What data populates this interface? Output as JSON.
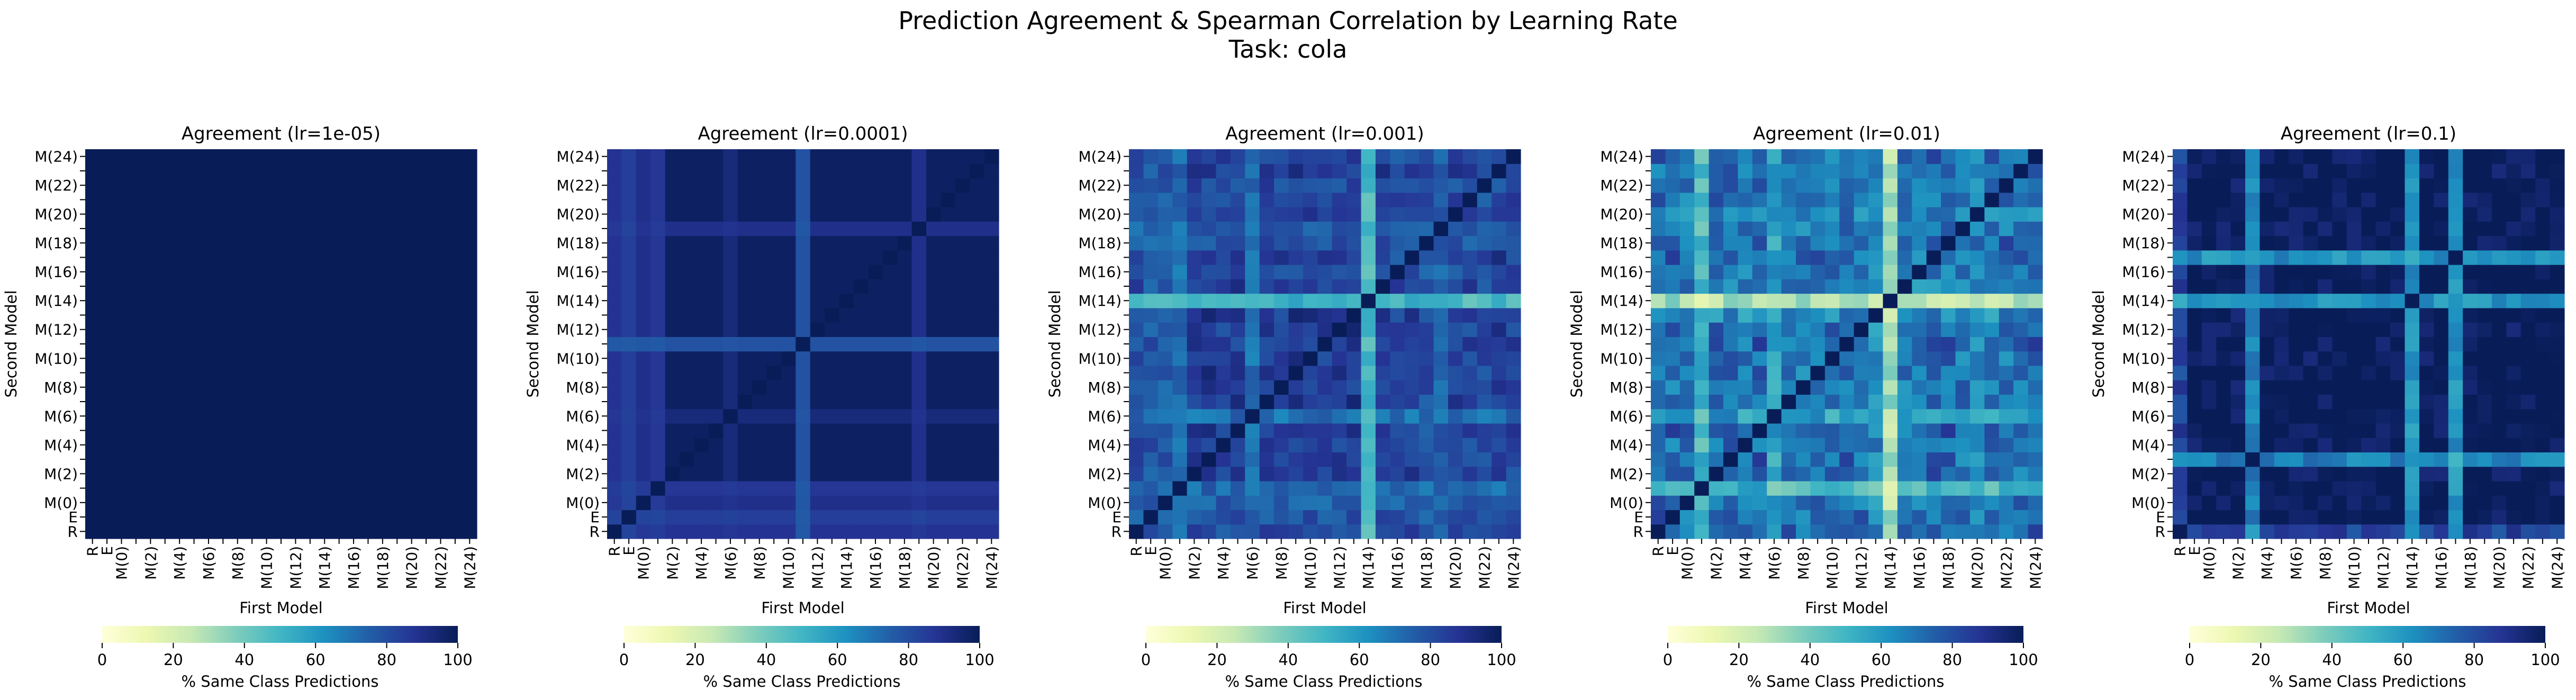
{
  "title_line1": "Prediction Agreement & Spearman Correlation by Learning Rate",
  "title_line2": "Task: cola",
  "colormap_name": "YlGnBu",
  "colormap_stops": [
    "#ffffd9",
    "#edf8b1",
    "#c7e9b4",
    "#7fcdbb",
    "#41b6c4",
    "#1d91c0",
    "#225ea8",
    "#253494",
    "#081d58"
  ],
  "chart_data": [
    {
      "type": "heatmap",
      "title": "Agreement (lr=1e-05)",
      "xlabel": "First Model",
      "ylabel": "Second Model",
      "x_tick_labels": [
        "R",
        "E",
        "M(0)",
        "M(2)",
        "M(4)",
        "M(6)",
        "M(8)",
        "M(10)",
        "M(12)",
        "M(14)",
        "M(16)",
        "M(18)",
        "M(20)",
        "M(22)",
        "M(24)"
      ],
      "y_tick_labels": [
        "R",
        "E",
        "M(0)",
        "M(2)",
        "M(4)",
        "M(6)",
        "M(8)",
        "M(10)",
        "M(12)",
        "M(14)",
        "M(16)",
        "M(18)",
        "M(20)",
        "M(22)",
        "M(24)"
      ],
      "n_models": 27,
      "grid": false,
      "colorbar": {
        "label": "% Same Class Predictions",
        "ticks": [
          0,
          20,
          40,
          60,
          80,
          100
        ],
        "range": [
          0,
          100
        ],
        "orientation": "horizontal",
        "placement": "bottom"
      },
      "values_description": "all cells approximately 100",
      "base_value": 100,
      "row_profile": []
    },
    {
      "type": "heatmap",
      "title": "Agreement (lr=0.0001)",
      "xlabel": "First Model",
      "ylabel": "Second Model",
      "x_tick_labels": [
        "R",
        "E",
        "M(0)",
        "M(2)",
        "M(4)",
        "M(6)",
        "M(8)",
        "M(10)",
        "M(12)",
        "M(14)",
        "M(16)",
        "M(18)",
        "M(20)",
        "M(22)",
        "M(24)"
      ],
      "y_tick_labels": [
        "R",
        "E",
        "M(0)",
        "M(2)",
        "M(4)",
        "M(6)",
        "M(8)",
        "M(10)",
        "M(12)",
        "M(14)",
        "M(16)",
        "M(18)",
        "M(20)",
        "M(22)",
        "M(24)"
      ],
      "n_models": 27,
      "grid": false,
      "colorbar": {
        "label": "% Same Class Predictions",
        "ticks": [
          0,
          20,
          40,
          60,
          80,
          100
        ],
        "range": [
          0,
          100
        ],
        "orientation": "horizontal",
        "placement": "bottom"
      },
      "base_value": 100,
      "row_profile": [
        86,
        82,
        88,
        85,
        98,
        98,
        98,
        98,
        92,
        98,
        98,
        98,
        98,
        75,
        98,
        98,
        98,
        98,
        98,
        98,
        98,
        88,
        98,
        98,
        98,
        98,
        98
      ]
    },
    {
      "type": "heatmap",
      "title": "Agreement (lr=0.001)",
      "xlabel": "First Model",
      "ylabel": "Second Model",
      "x_tick_labels": [
        "R",
        "E",
        "M(0)",
        "M(2)",
        "M(4)",
        "M(6)",
        "M(8)",
        "M(10)",
        "M(12)",
        "M(14)",
        "M(16)",
        "M(18)",
        "M(20)",
        "M(22)",
        "M(24)"
      ],
      "y_tick_labels": [
        "R",
        "E",
        "M(0)",
        "M(2)",
        "M(4)",
        "M(6)",
        "M(8)",
        "M(10)",
        "M(12)",
        "M(14)",
        "M(16)",
        "M(18)",
        "M(20)",
        "M(22)",
        "M(24)"
      ],
      "n_models": 27,
      "grid": false,
      "colorbar": {
        "label": "% Same Class Predictions",
        "ticks": [
          0,
          20,
          40,
          60,
          80,
          100
        ],
        "range": [
          0,
          100
        ],
        "orientation": "horizontal",
        "placement": "bottom"
      },
      "base_value": 100,
      "row_profile": [
        80,
        76,
        74,
        71,
        86,
        88,
        83,
        87,
        69,
        90,
        84,
        88,
        86,
        84,
        88,
        90,
        43,
        88,
        80,
        86,
        78,
        74,
        85,
        82,
        80,
        86,
        82
      ]
    },
    {
      "type": "heatmap",
      "title": "Agreement (lr=0.01)",
      "xlabel": "First Model",
      "ylabel": "Second Model",
      "x_tick_labels": [
        "R",
        "E",
        "M(0)",
        "M(2)",
        "M(4)",
        "M(6)",
        "M(8)",
        "M(10)",
        "M(12)",
        "M(14)",
        "M(16)",
        "M(18)",
        "M(20)",
        "M(22)",
        "M(24)"
      ],
      "y_tick_labels": [
        "R",
        "E",
        "M(0)",
        "M(2)",
        "M(4)",
        "M(6)",
        "M(8)",
        "M(10)",
        "M(12)",
        "M(14)",
        "M(16)",
        "M(18)",
        "M(20)",
        "M(22)",
        "M(24)"
      ],
      "n_models": 27,
      "grid": false,
      "colorbar": {
        "label": "% Same Class Predictions",
        "ticks": [
          0,
          20,
          40,
          60,
          80,
          100
        ],
        "range": [
          0,
          100
        ],
        "orientation": "horizontal",
        "placement": "bottom"
      },
      "base_value": 100,
      "row_profile": [
        82,
        78,
        70,
        45,
        74,
        76,
        70,
        80,
        55,
        72,
        68,
        74,
        70,
        76,
        72,
        62,
        22,
        66,
        68,
        74,
        76,
        70,
        66,
        72,
        74,
        70,
        76
      ]
    },
    {
      "type": "heatmap",
      "title": "Agreement (lr=0.1)",
      "xlabel": "First Model",
      "ylabel": "Second Model",
      "x_tick_labels": [
        "R",
        "E",
        "M(0)",
        "M(2)",
        "M(4)",
        "M(6)",
        "M(8)",
        "M(10)",
        "M(12)",
        "M(14)",
        "M(16)",
        "M(18)",
        "M(20)",
        "M(22)",
        "M(24)"
      ],
      "y_tick_labels": [
        "R",
        "E",
        "M(0)",
        "M(2)",
        "M(4)",
        "M(6)",
        "M(8)",
        "M(10)",
        "M(12)",
        "M(14)",
        "M(16)",
        "M(18)",
        "M(20)",
        "M(22)",
        "M(24)"
      ],
      "n_models": 27,
      "grid": false,
      "colorbar": {
        "label": "% Same Class Predictions",
        "ticks": [
          0,
          20,
          40,
          60,
          80,
          100
        ],
        "range": [
          0,
          100
        ],
        "orientation": "horizontal",
        "placement": "bottom"
      },
      "base_value": 100,
      "row_profile": [
        80,
        100,
        100,
        100,
        100,
        60,
        100,
        100,
        100,
        100,
        100,
        100,
        100,
        100,
        100,
        100,
        55,
        100,
        100,
        55,
        100,
        100,
        100,
        100,
        100,
        100,
        100
      ]
    }
  ]
}
